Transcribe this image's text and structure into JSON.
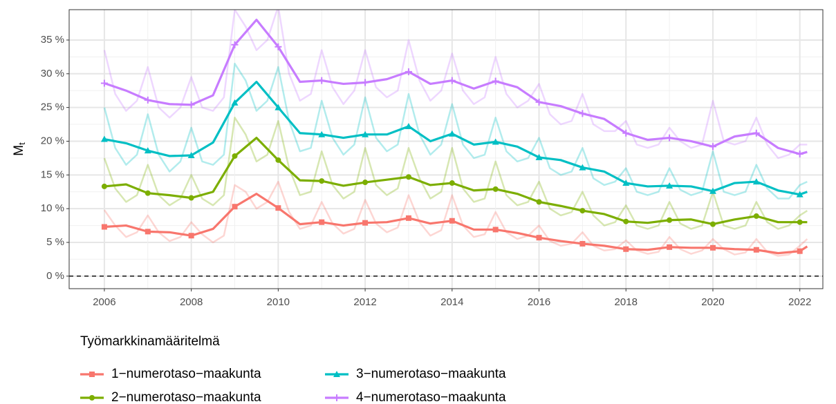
{
  "chart_data": {
    "type": "line",
    "ylabel": {
      "main": "M",
      "sub": "t"
    },
    "legend_title": "Työmarkkinamääritelmä",
    "legend_position": "bottom",
    "grid": true,
    "hline": 0,
    "xlim": [
      2005.19,
      2022.53
    ],
    "xticks": [
      2006,
      2008,
      2010,
      2012,
      2014,
      2016,
      2018,
      2020,
      2022
    ],
    "ylim": [
      -1.86,
      39.5
    ],
    "yticks": [
      {
        "value": 0,
        "label": "0 %"
      },
      {
        "value": 5,
        "label": "5 %"
      },
      {
        "value": 10,
        "label": "10 %"
      },
      {
        "value": 15,
        "label": "15 %"
      },
      {
        "value": 20,
        "label": "20 %"
      },
      {
        "value": 25,
        "label": "25 %"
      },
      {
        "value": 30,
        "label": "30 %"
      },
      {
        "value": 35,
        "label": "35 %"
      }
    ],
    "x": [
      2006,
      2006.5,
      2007,
      2007.5,
      2008,
      2008.5,
      2009,
      2009.5,
      2010,
      2010.5,
      2011,
      2011.5,
      2012,
      2012.5,
      2013,
      2013.5,
      2014,
      2014.5,
      2015,
      2015.5,
      2016,
      2016.5,
      2017,
      2017.5,
      2018,
      2018.5,
      2019,
      2019.5,
      2020,
      2020.5,
      2021,
      2021.5,
      2022,
      2022.17
    ],
    "x_raw": [
      2006,
      2006.25,
      2006.5,
      2006.75,
      2007,
      2007.25,
      2007.5,
      2007.75,
      2008,
      2008.25,
      2008.5,
      2008.75,
      2009,
      2009.25,
      2009.5,
      2009.75,
      2010,
      2010.25,
      2010.5,
      2010.75,
      2011,
      2011.25,
      2011.5,
      2011.75,
      2012,
      2012.25,
      2012.5,
      2012.75,
      2013,
      2013.25,
      2013.5,
      2013.75,
      2014,
      2014.25,
      2014.5,
      2014.75,
      2015,
      2015.25,
      2015.5,
      2015.75,
      2016,
      2016.25,
      2016.5,
      2016.75,
      2017,
      2017.25,
      2017.5,
      2017.75,
      2018,
      2018.25,
      2018.5,
      2018.75,
      2019,
      2019.25,
      2019.5,
      2019.75,
      2020,
      2020.25,
      2020.5,
      2020.75,
      2021,
      2021.25,
      2021.5,
      2021.75,
      2022,
      2022.17
    ],
    "series": [
      {
        "name": "1−numerotaso−maakunta",
        "color": "#F8766D",
        "marker": "square",
        "values": [
          7.3,
          7.5,
          6.6,
          6.5,
          6.0,
          7.0,
          10.3,
          12.2,
          10.1,
          7.7,
          8.0,
          7.5,
          7.9,
          8.0,
          8.6,
          7.8,
          8.2,
          6.9,
          6.9,
          6.4,
          5.7,
          5.2,
          4.8,
          4.5,
          4.0,
          3.9,
          4.3,
          4.2,
          4.2,
          4.0,
          3.9,
          3.4,
          3.7,
          4.4
        ],
        "raw_values": [
          9.8,
          7.5,
          5.8,
          6.5,
          9.0,
          6.5,
          5.2,
          5.8,
          8.0,
          6.2,
          5.0,
          6.0,
          13.5,
          12.5,
          10.0,
          11.0,
          14.0,
          9.5,
          7.0,
          7.5,
          11.0,
          7.8,
          6.3,
          7.0,
          11.3,
          7.8,
          6.5,
          7.2,
          12.0,
          8.0,
          6.0,
          6.8,
          12.0,
          7.5,
          5.8,
          6.2,
          9.5,
          6.5,
          5.5,
          6.0,
          7.5,
          5.2,
          4.5,
          4.8,
          6.5,
          4.5,
          3.8,
          4.0,
          5.3,
          3.8,
          3.3,
          3.6,
          5.8,
          4.0,
          3.3,
          3.8,
          5.5,
          4.0,
          3.2,
          3.5,
          5.5,
          3.6,
          3.0,
          3.2,
          4.5,
          5.5
        ]
      },
      {
        "name": "2−numerotaso−maakunta",
        "color": "#7CAE00",
        "marker": "circle",
        "values": [
          13.3,
          13.6,
          12.3,
          12.0,
          11.6,
          12.5,
          17.8,
          20.5,
          17.2,
          14.2,
          14.1,
          13.4,
          13.9,
          14.3,
          14.7,
          13.5,
          13.8,
          12.7,
          12.9,
          12.2,
          11.0,
          10.4,
          9.7,
          9.2,
          8.1,
          7.9,
          8.3,
          8.4,
          7.7,
          8.4,
          8.9,
          8.0,
          8.0,
          8.0
        ],
        "raw_values": [
          17.5,
          13.0,
          11.0,
          12.0,
          16.5,
          12.0,
          10.5,
          11.5,
          15.0,
          11.5,
          10.5,
          12.0,
          23.5,
          21.0,
          17.0,
          18.0,
          23.0,
          16.0,
          12.0,
          12.5,
          18.5,
          13.5,
          11.5,
          12.5,
          19.0,
          13.5,
          12.0,
          13.0,
          19.0,
          14.5,
          11.5,
          12.5,
          19.0,
          13.0,
          11.0,
          11.5,
          17.0,
          12.0,
          10.5,
          11.0,
          14.0,
          10.0,
          9.0,
          9.5,
          12.5,
          9.0,
          7.5,
          8.0,
          10.5,
          7.5,
          7.0,
          7.5,
          11.0,
          7.8,
          7.0,
          7.5,
          12.5,
          7.5,
          7.0,
          7.5,
          11.0,
          8.0,
          7.0,
          7.5,
          9.0,
          9.7
        ]
      },
      {
        "name": "3−numerotaso−maakunta",
        "color": "#00BFC4",
        "marker": "triangle",
        "values": [
          20.3,
          19.7,
          18.6,
          17.8,
          17.9,
          19.8,
          25.7,
          28.8,
          25.0,
          21.2,
          21.0,
          20.5,
          21.0,
          21.0,
          22.2,
          20.0,
          21.1,
          19.5,
          19.9,
          19.2,
          17.6,
          17.2,
          16.1,
          15.5,
          13.8,
          13.3,
          13.4,
          13.3,
          12.6,
          13.8,
          14.0,
          12.7,
          12.1,
          12.5
        ],
        "raw_values": [
          25.0,
          19.0,
          16.5,
          18.0,
          24.0,
          18.0,
          15.5,
          17.0,
          22.0,
          17.0,
          16.5,
          18.0,
          31.5,
          29.0,
          24.5,
          26.0,
          31.0,
          23.0,
          18.5,
          19.0,
          26.0,
          20.5,
          18.0,
          19.5,
          26.5,
          20.5,
          18.5,
          19.5,
          27.0,
          21.0,
          18.0,
          19.5,
          25.5,
          19.5,
          17.5,
          18.0,
          23.5,
          18.5,
          17.0,
          17.5,
          20.5,
          16.0,
          15.0,
          15.5,
          19.0,
          14.5,
          13.5,
          14.0,
          16.0,
          12.5,
          12.0,
          12.5,
          16.0,
          12.8,
          12.0,
          12.5,
          18.5,
          12.5,
          12.0,
          12.5,
          16.5,
          13.0,
          11.5,
          11.5,
          13.5,
          14.0
        ]
      },
      {
        "name": "4−numerotaso−maakunta",
        "color": "#C77CFF",
        "marker": "plus",
        "values": [
          28.6,
          27.5,
          26.1,
          25.5,
          25.4,
          26.8,
          34.3,
          38.0,
          34.0,
          28.8,
          29.0,
          28.5,
          28.7,
          29.2,
          30.3,
          28.5,
          29.0,
          27.8,
          28.9,
          28.0,
          25.8,
          25.2,
          24.1,
          23.3,
          21.2,
          20.2,
          20.5,
          20.0,
          19.2,
          20.7,
          21.2,
          19.0,
          18.1,
          18.4
        ],
        "raw_values": [
          33.5,
          27.0,
          24.5,
          26.0,
          31.0,
          25.0,
          23.5,
          25.0,
          29.5,
          25.0,
          24.5,
          26.5,
          39.5,
          37.0,
          33.5,
          35.0,
          40.0,
          30.0,
          26.0,
          27.0,
          33.5,
          28.0,
          25.5,
          27.5,
          33.5,
          28.0,
          26.5,
          27.5,
          35.0,
          29.0,
          26.0,
          27.5,
          33.0,
          27.5,
          25.5,
          26.5,
          32.5,
          27.0,
          25.0,
          26.0,
          28.5,
          24.0,
          22.5,
          23.0,
          27.0,
          22.5,
          21.5,
          21.5,
          23.0,
          19.5,
          19.0,
          19.5,
          22.0,
          20.0,
          19.0,
          19.5,
          26.0,
          20.0,
          19.5,
          20.0,
          23.5,
          19.5,
          17.5,
          18.0,
          19.5,
          19.5
        ]
      }
    ]
  }
}
